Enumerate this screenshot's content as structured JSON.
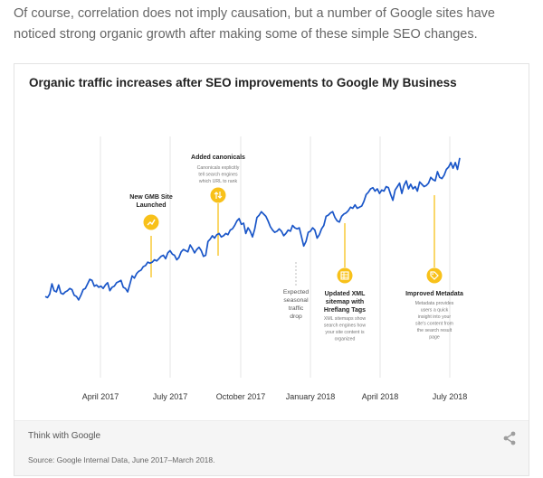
{
  "intro_text": "Of course, correlation does not imply causation, but a number of Google sites have noticed strong organic growth after making some of these simple SEO changes.",
  "footer": {
    "brand": "Think with Google",
    "source": "Source: Google Internal Data, June 2017–March 2018."
  },
  "colors": {
    "line": "#1a56c8",
    "marker": "#f8c11a",
    "grid": "#e6e6e6",
    "dashed": "#cccccc"
  },
  "chart_data": {
    "type": "line",
    "title": "Organic traffic increases after SEO improvements to Google My Business",
    "xlabel": "",
    "ylabel": "",
    "grid": "vertical",
    "x_ticks": [
      "April 2017",
      "July 2017",
      "October 2017",
      "January 2018",
      "April 2018",
      "July 2018"
    ],
    "series": [
      {
        "values": [
          26,
          25,
          28,
          37,
          31,
          30,
          36,
          29,
          28,
          30,
          31,
          33,
          32,
          27,
          26,
          23,
          27,
          32,
          33,
          37,
          41,
          40,
          35,
          36,
          34,
          35,
          33,
          36,
          38,
          31,
          34,
          35,
          38,
          39,
          40,
          34,
          33,
          30,
          37,
          44,
          42,
          46,
          48,
          49,
          52,
          53,
          56,
          55,
          56,
          58,
          57,
          59,
          61,
          62,
          59,
          64,
          66,
          63,
          62,
          58,
          60,
          65,
          67,
          66,
          65,
          71,
          68,
          64,
          67,
          69,
          66,
          61,
          62,
          74,
          76,
          79,
          77,
          80,
          81,
          78,
          79,
          81,
          80,
          84,
          85,
          88,
          92,
          94,
          89,
          90,
          81,
          86,
          83,
          78,
          85,
          95,
          97,
          100,
          98,
          96,
          92,
          87,
          84,
          82,
          83,
          85,
          83,
          79,
          81,
          84,
          83,
          88,
          86,
          85,
          86,
          78,
          70,
          74,
          82,
          83,
          86,
          84,
          77,
          80,
          85,
          88,
          96,
          97,
          99,
          100,
          95,
          92,
          91,
          96,
          98,
          99,
          101,
          104,
          103,
          106,
          103,
          104,
          105,
          109,
          115,
          117,
          120,
          121,
          118,
          120,
          116,
          119,
          118,
          122,
          121,
          115,
          110,
          119,
          122,
          125,
          116,
          123,
          127,
          120,
          124,
          120,
          122,
          118,
          126,
          124,
          122,
          123,
          125,
          130,
          128,
          127,
          135,
          130,
          129,
          132,
          137,
          139,
          143,
          138,
          143,
          137,
          147
        ]
      }
    ],
    "annotations": [
      {
        "label": "New GMB Site Launched",
        "description": "",
        "icon": "trending-up-icon"
      },
      {
        "label": "Added canonicals",
        "description": "Canonicals explicitly tell search engines which URL to rank",
        "icon": "swap-vertical-icon"
      },
      {
        "label": "Expected seasonal traffic drop",
        "description": "",
        "icon": ""
      },
      {
        "label": "Updated XML sitemap with Hreflang Tags",
        "description": "XML sitemaps show search engines how your site content is organized",
        "icon": "sitemap-icon"
      },
      {
        "label": "Improved Metadata",
        "description": "Metadata provides users a quick insight into your site's content from the search result page",
        "icon": "tag-icon"
      }
    ]
  }
}
